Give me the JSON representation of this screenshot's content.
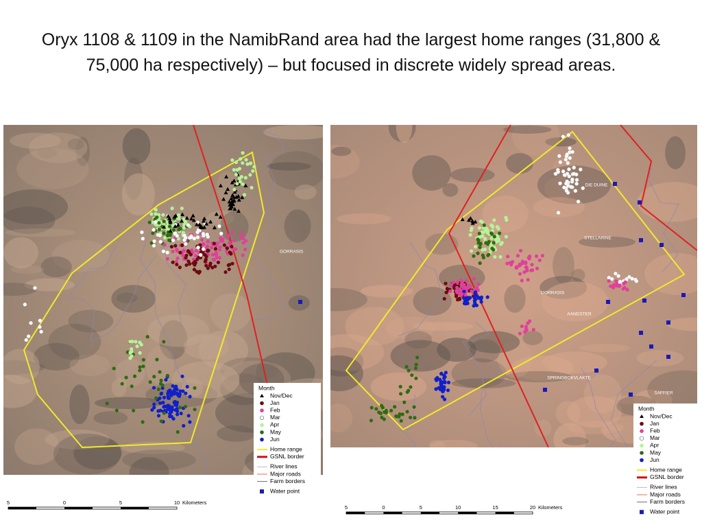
{
  "title": "Oryx 1108 & 1109 in the NamibRand area had the largest home ranges (31,800 & 75,000 ha respectively) – but focused in discrete widely spread areas.",
  "maps": [
    {
      "place_labels": [
        "GORRASIS"
      ],
      "legend": {
        "title": "Month",
        "items": [
          "Nov/Dec",
          "Jan",
          "Feb",
          "Mar",
          "Apr",
          "May",
          "Jun",
          "Home range",
          "GSNL border",
          "River lines",
          "Major roads",
          "Farm borders",
          "Water point"
        ]
      },
      "scale": {
        "ticks": [
          "5",
          "0",
          "5",
          "10"
        ],
        "unit": "Kilometers"
      }
    },
    {
      "place_labels": [
        "DIE DUINE",
        "STELLARINE",
        "GORRASIS",
        "AANDSTER",
        "SPRINGBOKVLAKTE",
        "SAFFIER"
      ],
      "legend": {
        "title": "Month",
        "items": [
          "Nov/Dec",
          "Jan",
          "Feb",
          "Mar",
          "Apr",
          "May",
          "Jun",
          "Home range",
          "GSNL border",
          "River lines",
          "Major roads",
          "Farm borders",
          "Water point"
        ]
      },
      "scale": {
        "ticks": [
          "5",
          "0",
          "5",
          "10",
          "15",
          "20"
        ],
        "unit": "Kilometers"
      }
    }
  ]
}
